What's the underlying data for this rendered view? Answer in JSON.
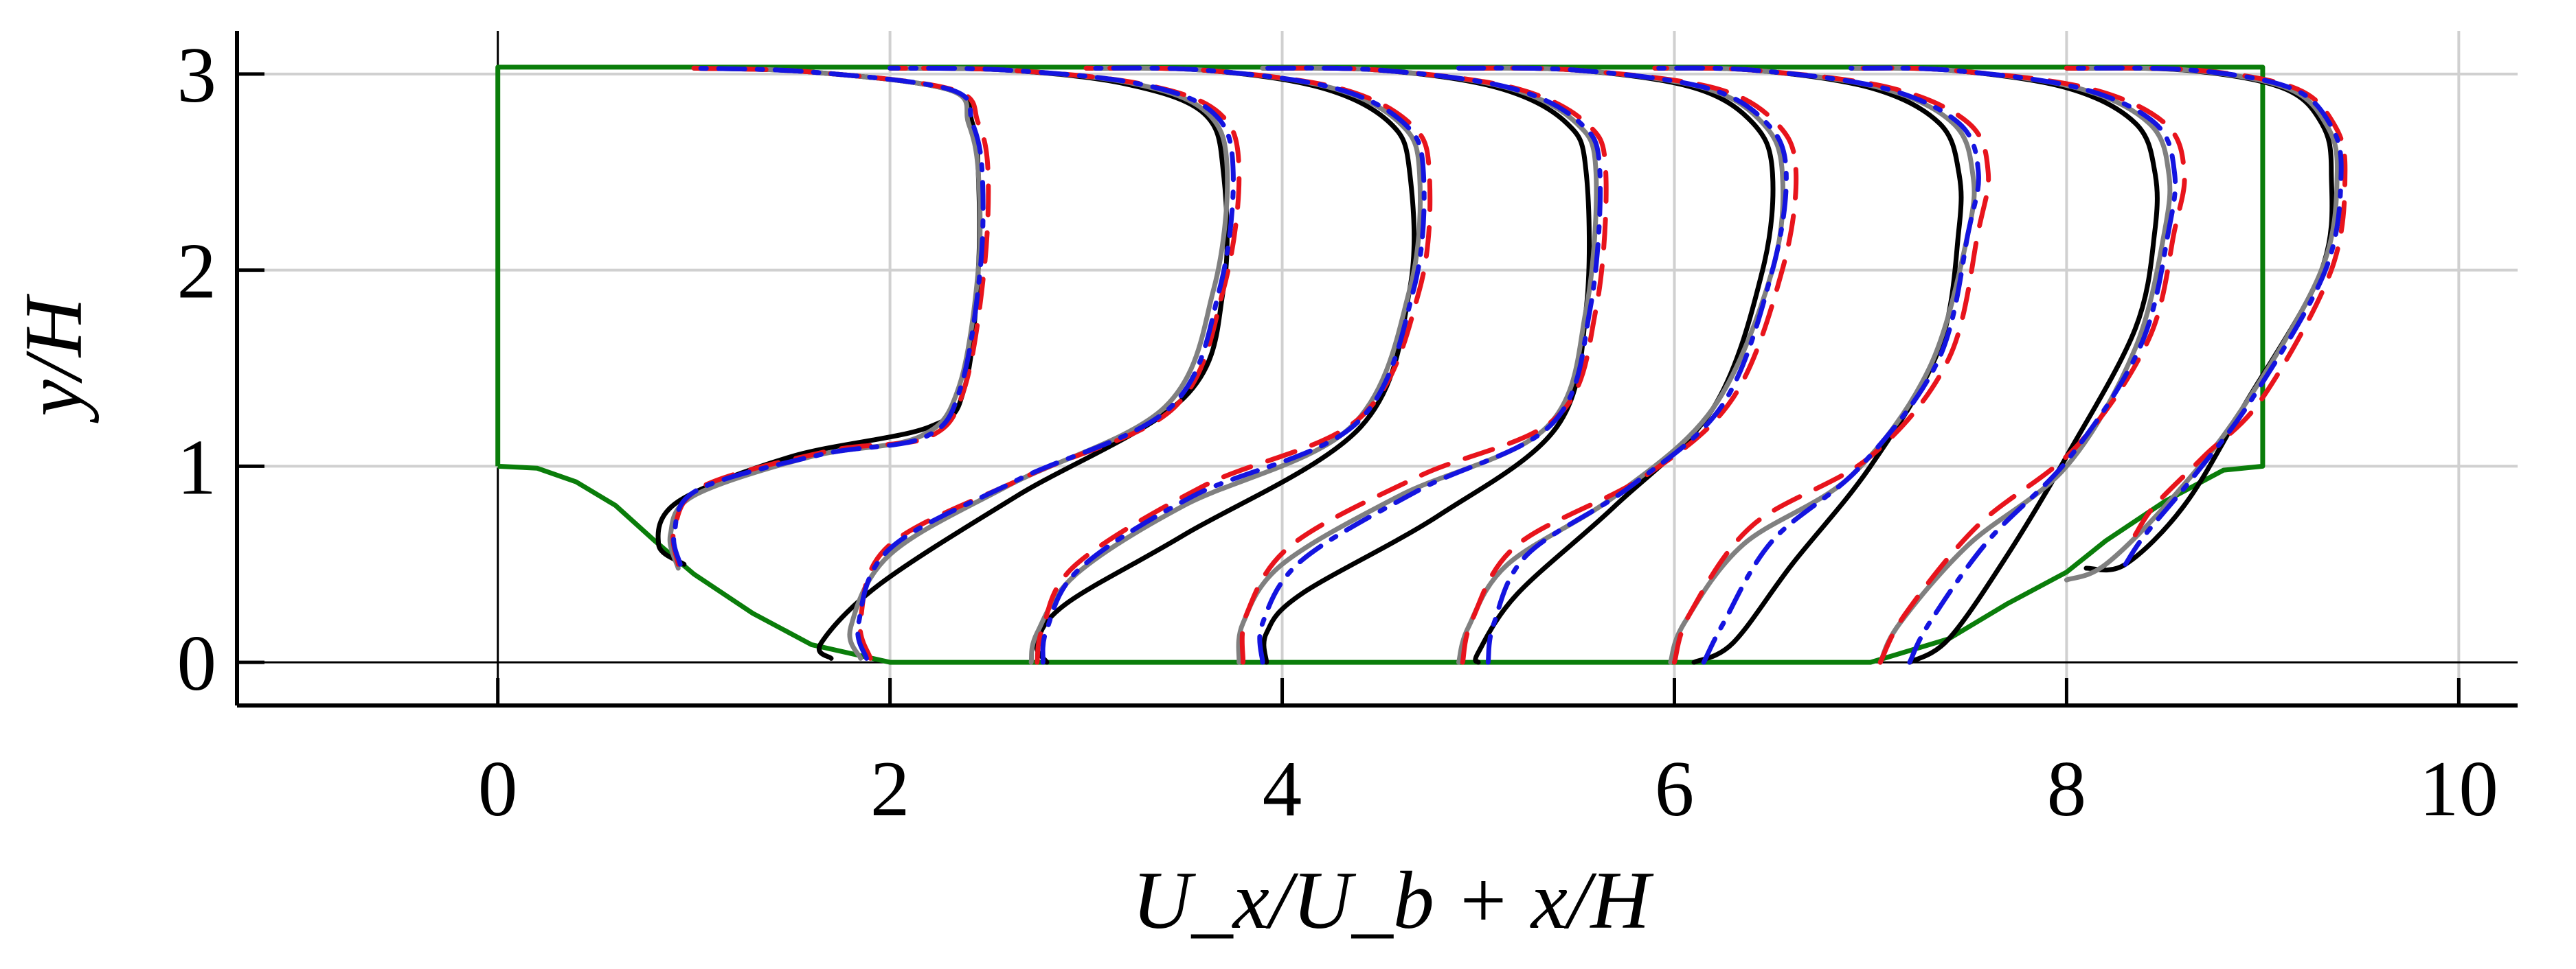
{
  "chart_data": {
    "type": "line",
    "title": "",
    "xlabel": "U_x/U_b + x/H",
    "ylabel": "y/H",
    "xlim": [
      -1.33,
      10.3
    ],
    "ylim": [
      -0.22,
      3.22
    ],
    "grid": true,
    "legend": "none",
    "xticks": [
      "0",
      "2",
      "4",
      "6",
      "8",
      "10"
    ],
    "yticks": [
      "0",
      "1",
      "2",
      "3"
    ],
    "geometry": {
      "name": "",
      "color": "#0a7d0a",
      "x": [
        0,
        0,
        9,
        9,
        8.8,
        8.5,
        8.2,
        8.0,
        7.7,
        7.4,
        7.1,
        7.0,
        2.0,
        1.6,
        1.3,
        1.0,
        0.8,
        0.6,
        0.4,
        0.2,
        0
      ],
      "y": [
        1.0,
        3.035,
        3.035,
        1.0,
        0.98,
        0.82,
        0.62,
        0.46,
        0.3,
        0.12,
        0.03,
        0,
        0,
        0.09,
        0.25,
        0.45,
        0.62,
        0.8,
        0.92,
        0.99,
        1.0
      ]
    },
    "profile_stations": [
      0.5,
      1.5,
      2.5,
      3.5,
      4.5,
      5.5,
      6.5,
      7.5,
      8.5
    ],
    "series": [
      {
        "name": "",
        "color": "#000000",
        "dash": "solid",
        "profiles": [
          {
            "x": [
              0.95,
              0.82,
              0.92,
              1.5,
              2.2,
              2.38,
              2.45,
              2.45,
              2.42,
              2.3,
              1.6,
              1.0
            ],
            "y": [
              0.5,
              0.6,
              0.82,
              1.05,
              1.2,
              1.4,
              2.0,
              2.5,
              2.75,
              2.92,
              3.01,
              3.03
            ]
          },
          {
            "x": [
              1.7,
              1.65,
              1.95,
              2.65,
              3.5,
              3.7,
              3.7,
              3.6,
              3.2,
              2.6,
              2.0
            ],
            "y": [
              0.02,
              0.1,
              0.4,
              0.85,
              1.35,
              1.9,
              2.5,
              2.8,
              2.95,
              3.02,
              3.03
            ]
          },
          {
            "x": [
              2.8,
              2.75,
              2.9,
              3.5,
              4.4,
              4.65,
              4.65,
              4.55,
              4.2,
              3.6,
              3.0
            ],
            "y": [
              0.0,
              0.1,
              0.3,
              0.65,
              1.2,
              1.9,
              2.5,
              2.75,
              2.93,
              3.02,
              3.03
            ]
          },
          {
            "x": [
              3.92,
              3.92,
              4.1,
              4.8,
              5.4,
              5.55,
              5.55,
              5.45,
              5.1,
              4.5,
              3.9
            ],
            "y": [
              0.0,
              0.15,
              0.35,
              0.75,
              1.2,
              1.8,
              2.5,
              2.75,
              2.93,
              3.02,
              3.03
            ]
          },
          {
            "x": [
              5.0,
              5.0,
              5.2,
              5.7,
              6.2,
              6.45,
              6.5,
              6.4,
              6.1,
              5.5,
              4.9
            ],
            "y": [
              0.0,
              0.05,
              0.35,
              0.8,
              1.3,
              2.0,
              2.5,
              2.75,
              2.93,
              3.02,
              3.03
            ]
          },
          {
            "x": [
              6.1,
              6.3,
              6.6,
              7.0,
              7.35,
              7.45,
              7.45,
              7.35,
              7.0,
              6.4,
              5.9
            ],
            "y": [
              0.0,
              0.1,
              0.5,
              1.0,
              1.6,
              2.2,
              2.5,
              2.75,
              2.93,
              3.02,
              3.03
            ]
          },
          {
            "x": [
              7.2,
              7.4,
              7.7,
              8.0,
              8.35,
              8.45,
              8.45,
              8.35,
              8.0,
              7.4,
              6.9
            ],
            "y": [
              0.0,
              0.12,
              0.55,
              1.05,
              1.7,
              2.2,
              2.5,
              2.75,
              2.93,
              3.02,
              3.03
            ]
          },
          {
            "x": [
              8.1,
              8.3,
              8.6,
              8.9,
              9.3,
              9.35,
              9.3,
              9.1,
              8.6,
              8.0
            ],
            "y": [
              0.48,
              0.5,
              0.8,
              1.3,
              2.0,
              2.5,
              2.75,
              2.93,
              3.02,
              3.03
            ]
          }
        ]
      },
      {
        "name": "",
        "color": "#808080",
        "dash": "solid",
        "profiles": [
          {
            "x": [
              0.92,
              0.88,
              1.0,
              1.6,
              2.15,
              2.35,
              2.45,
              2.45,
              2.4,
              2.3,
              1.6,
              1.0
            ],
            "y": [
              0.48,
              0.65,
              0.85,
              1.05,
              1.15,
              1.4,
              2.0,
              2.5,
              2.75,
              2.92,
              3.01,
              3.03
            ]
          },
          {
            "x": [
              1.85,
              1.8,
              2.0,
              2.6,
              3.4,
              3.65,
              3.72,
              3.62,
              3.25,
              2.6,
              2.0
            ],
            "y": [
              0.02,
              0.18,
              0.55,
              0.9,
              1.3,
              1.9,
              2.5,
              2.8,
              2.95,
              3.02,
              3.03
            ]
          },
          {
            "x": [
              2.72,
              2.75,
              2.95,
              3.5,
              4.35,
              4.65,
              4.7,
              4.6,
              4.25,
              3.6,
              3.0
            ],
            "y": [
              0.0,
              0.15,
              0.45,
              0.8,
              1.2,
              1.9,
              2.5,
              2.75,
              2.93,
              3.02,
              3.03
            ]
          },
          {
            "x": [
              3.78,
              3.8,
              4.0,
              4.6,
              5.35,
              5.55,
              5.6,
              5.5,
              5.15,
              4.5,
              3.9
            ],
            "y": [
              0.0,
              0.2,
              0.5,
              0.85,
              1.2,
              1.8,
              2.5,
              2.75,
              2.93,
              3.02,
              3.03
            ]
          },
          {
            "x": [
              4.9,
              4.95,
              5.15,
              5.7,
              6.2,
              6.5,
              6.55,
              6.45,
              6.15,
              5.5,
              4.9
            ],
            "y": [
              0.0,
              0.18,
              0.5,
              0.85,
              1.3,
              2.0,
              2.5,
              2.75,
              2.93,
              3.02,
              3.03
            ]
          },
          {
            "x": [
              5.98,
              6.05,
              6.35,
              6.9,
              7.3,
              7.5,
              7.52,
              7.42,
              7.05,
              6.4,
              5.9
            ],
            "y": [
              0.0,
              0.2,
              0.6,
              0.95,
              1.5,
              2.2,
              2.5,
              2.75,
              2.93,
              3.02,
              3.03
            ]
          },
          {
            "x": [
              7.05,
              7.15,
              7.5,
              8.0,
              8.35,
              8.5,
              8.52,
              8.42,
              8.05,
              7.4,
              6.9
            ],
            "y": [
              0.0,
              0.2,
              0.6,
              1.0,
              1.6,
              2.2,
              2.5,
              2.75,
              2.93,
              3.02,
              3.03
            ]
          },
          {
            "x": [
              8.0,
              8.2,
              8.55,
              8.9,
              9.3,
              9.38,
              9.32,
              9.12,
              8.62,
              8.0
            ],
            "y": [
              0.42,
              0.5,
              0.85,
              1.3,
              2.0,
              2.5,
              2.75,
              2.93,
              3.02,
              3.03
            ]
          }
        ]
      },
      {
        "name": "",
        "color": "#e8141c",
        "dash": "dashed",
        "profiles": [
          {
            "x": [
              0.92,
              0.9,
              1.05,
              1.7,
              2.2,
              2.38,
              2.48,
              2.5,
              2.45,
              2.32,
              1.6,
              1.0
            ],
            "y": [
              0.5,
              0.68,
              0.9,
              1.08,
              1.15,
              1.4,
              2.0,
              2.5,
              2.75,
              2.92,
              3.01,
              3.03
            ]
          },
          {
            "x": [
              1.9,
              1.85,
              2.0,
              2.7,
              3.45,
              3.7,
              3.78,
              3.68,
              3.28,
              2.6,
              2.0
            ],
            "y": [
              0.02,
              0.22,
              0.6,
              0.95,
              1.3,
              1.9,
              2.5,
              2.8,
              2.95,
              3.02,
              3.03
            ]
          },
          {
            "x": [
              2.75,
              2.78,
              2.95,
              3.6,
              4.4,
              4.7,
              4.75,
              4.65,
              4.28,
              3.6,
              3.0
            ],
            "y": [
              0.0,
              0.18,
              0.5,
              0.9,
              1.25,
              1.9,
              2.5,
              2.75,
              2.93,
              3.02,
              3.03
            ]
          },
          {
            "x": [
              3.8,
              3.82,
              4.05,
              4.7,
              5.4,
              5.6,
              5.65,
              5.55,
              5.18,
              4.5,
              3.9
            ],
            "y": [
              0.0,
              0.25,
              0.6,
              0.95,
              1.25,
              1.8,
              2.5,
              2.75,
              2.93,
              3.02,
              3.03
            ]
          },
          {
            "x": [
              4.92,
              4.97,
              5.2,
              5.85,
              6.3,
              6.55,
              6.62,
              6.52,
              6.2,
              5.5,
              4.9
            ],
            "y": [
              0.0,
              0.22,
              0.6,
              0.95,
              1.35,
              2.0,
              2.5,
              2.75,
              2.93,
              3.02,
              3.03
            ]
          },
          {
            "x": [
              6.0,
              6.08,
              6.4,
              7.0,
              7.4,
              7.55,
              7.6,
              7.5,
              7.1,
              6.4,
              5.9
            ],
            "y": [
              0.0,
              0.25,
              0.7,
              1.05,
              1.55,
              2.2,
              2.5,
              2.75,
              2.93,
              3.02,
              3.03
            ]
          },
          {
            "x": [
              7.05,
              7.18,
              7.55,
              8.05,
              8.42,
              8.55,
              8.6,
              8.5,
              8.1,
              7.4,
              6.9
            ],
            "y": [
              0.0,
              0.25,
              0.7,
              1.1,
              1.65,
              2.2,
              2.5,
              2.75,
              2.93,
              3.02,
              3.03
            ]
          },
          {
            "x": [
              8.35,
              8.45,
              8.7,
              9.0,
              9.35,
              9.42,
              9.36,
              9.16,
              8.66,
              8.0
            ],
            "y": [
              0.65,
              0.8,
              1.05,
              1.35,
              2.0,
              2.5,
              2.75,
              2.93,
              3.02,
              3.03
            ]
          }
        ]
      },
      {
        "name": "",
        "color": "#1414e0",
        "dash": "dashdot",
        "profiles": [
          {
            "x": [
              0.93,
              0.9,
              1.02,
              1.65,
              2.18,
              2.36,
              2.46,
              2.47,
              2.42,
              2.31,
              1.6,
              1.0
            ],
            "y": [
              0.5,
              0.66,
              0.88,
              1.06,
              1.15,
              1.4,
              2.0,
              2.5,
              2.75,
              2.92,
              3.01,
              3.03
            ]
          },
          {
            "x": [
              1.88,
              1.84,
              2.0,
              2.65,
              3.43,
              3.68,
              3.75,
              3.65,
              3.27,
              2.6,
              2.0
            ],
            "y": [
              0.02,
              0.2,
              0.58,
              0.93,
              1.3,
              1.9,
              2.5,
              2.8,
              2.95,
              3.02,
              3.03
            ]
          },
          {
            "x": [
              2.78,
              2.8,
              2.97,
              3.55,
              4.38,
              4.67,
              4.72,
              4.62,
              4.26,
              3.6,
              3.0
            ],
            "y": [
              0.0,
              0.17,
              0.48,
              0.85,
              1.22,
              1.9,
              2.5,
              2.75,
              2.93,
              3.02,
              3.03
            ]
          },
          {
            "x": [
              3.9,
              3.9,
              4.1,
              4.7,
              5.38,
              5.57,
              5.62,
              5.52,
              5.16,
              4.5,
              3.9
            ],
            "y": [
              0.0,
              0.2,
              0.52,
              0.88,
              1.22,
              1.8,
              2.5,
              2.75,
              2.93,
              3.02,
              3.03
            ]
          },
          {
            "x": [
              5.05,
              5.08,
              5.25,
              5.78,
              6.25,
              6.5,
              6.57,
              6.47,
              6.16,
              5.5,
              4.9
            ],
            "y": [
              0.0,
              0.2,
              0.55,
              0.9,
              1.32,
              2.0,
              2.5,
              2.75,
              2.93,
              3.02,
              3.03
            ]
          },
          {
            "x": [
              6.15,
              6.25,
              6.5,
              6.95,
              7.35,
              7.5,
              7.55,
              7.45,
              7.06,
              6.4,
              5.9
            ],
            "y": [
              0.0,
              0.2,
              0.62,
              1.0,
              1.55,
              2.2,
              2.5,
              2.75,
              2.93,
              3.02,
              3.03
            ]
          },
          {
            "x": [
              7.2,
              7.3,
              7.6,
              8.02,
              8.38,
              8.52,
              8.55,
              8.45,
              8.06,
              7.4,
              6.9
            ],
            "y": [
              0.0,
              0.2,
              0.62,
              1.05,
              1.62,
              2.2,
              2.5,
              2.75,
              2.93,
              3.02,
              3.03
            ]
          },
          {
            "x": [
              8.3,
              8.4,
              8.65,
              8.95,
              9.32,
              9.4,
              9.34,
              9.14,
              8.64,
              8.0
            ],
            "y": [
              0.5,
              0.65,
              0.95,
              1.35,
              2.0,
              2.5,
              2.75,
              2.93,
              3.02,
              3.03
            ]
          }
        ]
      }
    ]
  }
}
